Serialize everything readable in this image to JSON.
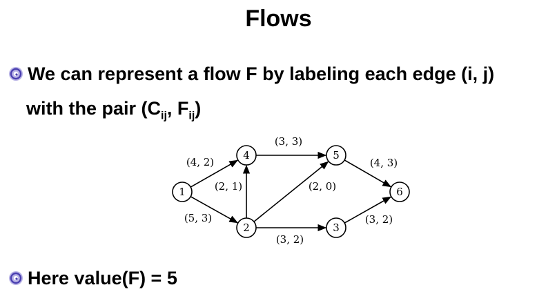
{
  "slide": {
    "title": "Flows",
    "bullet1": {
      "line1": "We can represent a flow F by labeling each edge (i, j)",
      "line2_prefix": "with the pair (C",
      "sub1": "ij",
      "mid": ", F",
      "sub2": "ij",
      "suffix": ")"
    },
    "bullet2": "Here value(F) = 5"
  },
  "graph": {
    "nodes": [
      {
        "id": "1",
        "label": "1"
      },
      {
        "id": "2",
        "label": "2"
      },
      {
        "id": "3",
        "label": "3"
      },
      {
        "id": "4",
        "label": "4"
      },
      {
        "id": "5",
        "label": "5"
      },
      {
        "id": "6",
        "label": "6"
      }
    ],
    "edges": [
      {
        "from": "1",
        "to": "4",
        "label": "(4, 2)"
      },
      {
        "from": "1",
        "to": "2",
        "label": "(5, 3)"
      },
      {
        "from": "2",
        "to": "4",
        "label": "(2, 1)"
      },
      {
        "from": "4",
        "to": "5",
        "label": "(3, 3)"
      },
      {
        "from": "2",
        "to": "5",
        "label": "(2, 0)"
      },
      {
        "from": "2",
        "to": "3",
        "label": "(3, 2)"
      },
      {
        "from": "5",
        "to": "6",
        "label": "(4, 3)"
      },
      {
        "from": "3",
        "to": "6",
        "label": "(3, 2)"
      }
    ]
  }
}
